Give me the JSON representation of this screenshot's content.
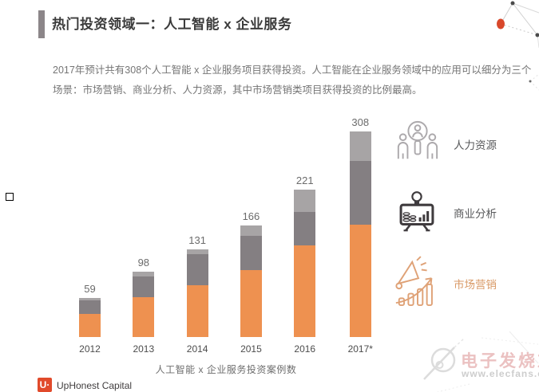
{
  "header": {
    "title": "热门投资领域一：人工智能 x 企业服务"
  },
  "intro": {
    "line1": "2017年预计共有308个人工智能 x 企业服务项目获得投资。人工智能在企业服务领域中的应用可以细分为三个",
    "line2": "场景：市场营销、商业分析、人力资源，其中市场营销类项目获得投资的比例最高。"
  },
  "chart_data": {
    "type": "bar",
    "stacked": true,
    "categories": [
      "2012",
      "2013",
      "2014",
      "2015",
      "2016",
      "2017*"
    ],
    "totals": [
      59,
      98,
      131,
      166,
      221,
      308
    ],
    "series": [
      {
        "name": "市场营销",
        "color": "#EE9150",
        "values": [
          35,
          60,
          78,
          100,
          137,
          168
        ]
      },
      {
        "name": "商业分析",
        "color": "#847F82",
        "values": [
          20,
          31,
          46,
          51,
          50,
          96
        ]
      },
      {
        "name": "人力资源",
        "color": "#A7A4A5",
        "values": [
          4,
          7,
          7,
          15,
          34,
          44
        ]
      }
    ],
    "title": "",
    "xlabel": "人工智能 x 企业服务投资案例数",
    "ylabel": "",
    "ylim": [
      0,
      308
    ],
    "grid": false,
    "value_labels": true,
    "legend_position": "right"
  },
  "legend": {
    "items": [
      {
        "label": "人力资源",
        "icon": "hr-people-search-icon",
        "icon_color": "#ACA9AC",
        "label_color": "#58595b"
      },
      {
        "label": "商业分析",
        "icon": "analytics-monitor-icon",
        "icon_color": "#3F3B3E",
        "label_color": "#58595b"
      },
      {
        "label": "市场营销",
        "icon": "marketing-megaphone-icon",
        "icon_color": "#DFA277",
        "label_color": "#D99A67"
      }
    ]
  },
  "footer": {
    "brand": "UpHonest Capital",
    "logo_glyph": "U·"
  },
  "watermark": {
    "text": "电子发烧友",
    "url": "www.elecfans.com"
  },
  "colors": {
    "accent_orange": "#EE9150",
    "dark_gray": "#847F82",
    "light_gray": "#A7A4A5",
    "brand_red": "#E14A2B"
  }
}
